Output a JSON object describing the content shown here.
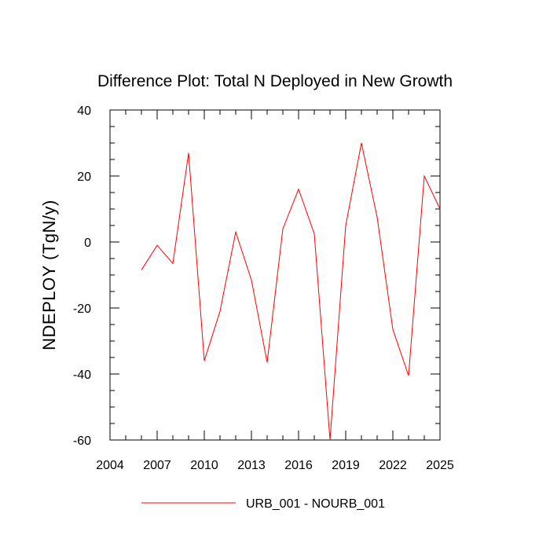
{
  "chart_data": {
    "type": "line",
    "title": "Difference Plot: Total N Deployed in New Growth",
    "xlabel": "",
    "ylabel": "NDEPLOY  (TgN/y)",
    "xlim": [
      2004,
      2025
    ],
    "ylim": [
      -60,
      40
    ],
    "x_ticks": [
      2004,
      2007,
      2010,
      2013,
      2016,
      2019,
      2022,
      2025
    ],
    "y_ticks": [
      -60,
      -40,
      -20,
      0,
      20,
      40
    ],
    "grid": false,
    "legend_position": "bottom",
    "series": [
      {
        "name": "URB_001 - NOURB_001",
        "color": "#ff0000",
        "x": [
          2006,
          2007,
          2008,
          2009,
          2010,
          2011,
          2012,
          2013,
          2014,
          2015,
          2016,
          2017,
          2018,
          2019,
          2020,
          2021,
          2022,
          2023,
          2024,
          2025
        ],
        "values": [
          -8.5,
          -1,
          -6.5,
          27,
          -36,
          -21,
          3,
          -11.5,
          -36.5,
          4,
          16,
          2.5,
          -60,
          5,
          30,
          7.5,
          -26.5,
          -40.5,
          20,
          10
        ]
      }
    ]
  }
}
